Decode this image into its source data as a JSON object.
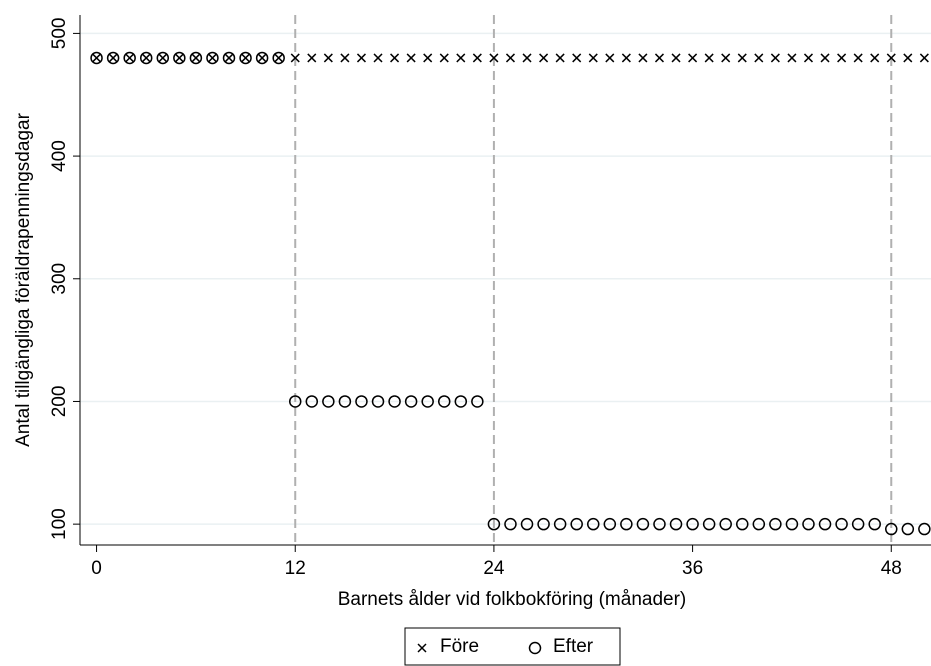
{
  "chart_data": {
    "type": "scatter",
    "xlabel": "Barnets ålder vid folkbokföring (månader)",
    "ylabel": "Antal tillgängliga föräldrapenningsdagar",
    "x": [
      0,
      1,
      2,
      3,
      4,
      5,
      6,
      7,
      8,
      9,
      10,
      11,
      12,
      13,
      14,
      15,
      16,
      17,
      18,
      19,
      20,
      21,
      22,
      23,
      24,
      25,
      26,
      27,
      28,
      29,
      30,
      31,
      32,
      33,
      34,
      35,
      36,
      37,
      38,
      39,
      40,
      41,
      42,
      43,
      44,
      45,
      46,
      47,
      48,
      49,
      50
    ],
    "series": [
      {
        "name": "Före",
        "color": "#000000",
        "marker": "x",
        "values": [
          480,
          480,
          480,
          480,
          480,
          480,
          480,
          480,
          480,
          480,
          480,
          480,
          480,
          480,
          480,
          480,
          480,
          480,
          480,
          480,
          480,
          480,
          480,
          480,
          480,
          480,
          480,
          480,
          480,
          480,
          480,
          480,
          480,
          480,
          480,
          480,
          480,
          480,
          480,
          480,
          480,
          480,
          480,
          480,
          480,
          480,
          480,
          480,
          480,
          480,
          480
        ]
      },
      {
        "name": "Efter",
        "color": "#000000",
        "marker": "circle",
        "values": [
          480,
          480,
          480,
          480,
          480,
          480,
          480,
          480,
          480,
          480,
          480,
          480,
          200,
          200,
          200,
          200,
          200,
          200,
          200,
          200,
          200,
          200,
          200,
          200,
          100,
          100,
          100,
          100,
          100,
          100,
          100,
          100,
          100,
          100,
          100,
          100,
          100,
          100,
          100,
          100,
          100,
          100,
          100,
          100,
          100,
          100,
          100,
          100,
          96,
          96,
          96
        ]
      }
    ],
    "xlim": [
      -1,
      50.4
    ],
    "ylim": [
      83,
      515
    ],
    "xticks": [
      0,
      12,
      24,
      36,
      48
    ],
    "yticks": [
      100,
      200,
      300,
      400,
      500
    ],
    "xlines": [
      12,
      24,
      48
    ],
    "grid": true,
    "legend": "bottom"
  }
}
